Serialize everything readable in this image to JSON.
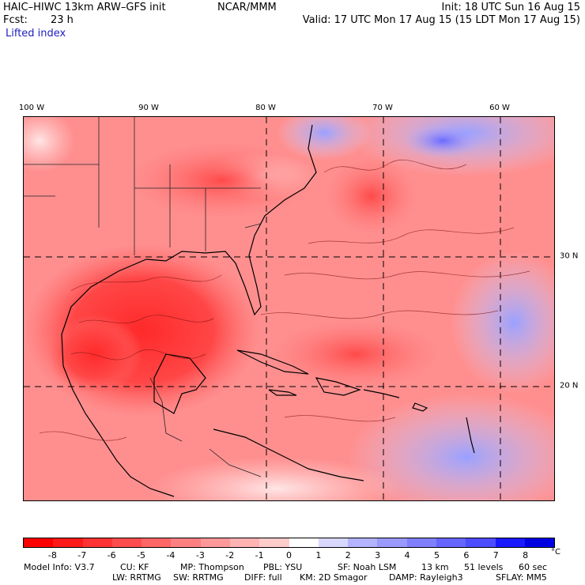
{
  "header": {
    "model_title": "HAIC–HIWC 13km ARW–GFS init",
    "org": "NCAR/MMM",
    "init": "Init: 18 UTC Sun 16 Aug 15",
    "fcst_label": "Fcst:",
    "fcst_value": "23 h",
    "valid": "Valid: 17 UTC Mon 17 Aug 15 (15 LDT Mon 17 Aug 15)",
    "field": "Lifted index"
  },
  "map": {
    "lon_labels": [
      "100 W",
      "90 W",
      "80 W",
      "70 W",
      "60 W"
    ],
    "lat_labels": [
      "30 N",
      "20 N"
    ]
  },
  "colorbar": {
    "labels": [
      "-8",
      "-7",
      "-6",
      "-5",
      "-4",
      "-3",
      "-2",
      "-1",
      "0",
      "1",
      "2",
      "3",
      "4",
      "5",
      "6",
      "7",
      "8"
    ],
    "unit": "°C",
    "colors": [
      "#ff0000",
      "#ff1a1a",
      "#ff3333",
      "#ff4d4d",
      "#ff6666",
      "#ff8080",
      "#ff9999",
      "#ffb3b3",
      "#ffcccc",
      "#ffffff",
      "#d8d8ff",
      "#b3b3ff",
      "#9999ff",
      "#8080ff",
      "#6666ff",
      "#4d4dff",
      "#1a1aff",
      "#0000e0"
    ]
  },
  "footer": {
    "line1": {
      "model_info": "Model Info: V3.7",
      "cu": "CU: KF",
      "mp": "MP: Thompson",
      "pbl": "PBL: YSU",
      "sf": "SF: Noah LSM",
      "res": "13 km",
      "levels": "51 levels",
      "dt": "60 sec"
    },
    "line2": {
      "lw": "LW: RRTMG",
      "sw": "SW: RRTMG",
      "diff": "DIFF: full",
      "km": "KM: 2D Smagor",
      "damp": "DAMP: Rayleigh3",
      "sflay": "SFLAY: MM5"
    }
  }
}
